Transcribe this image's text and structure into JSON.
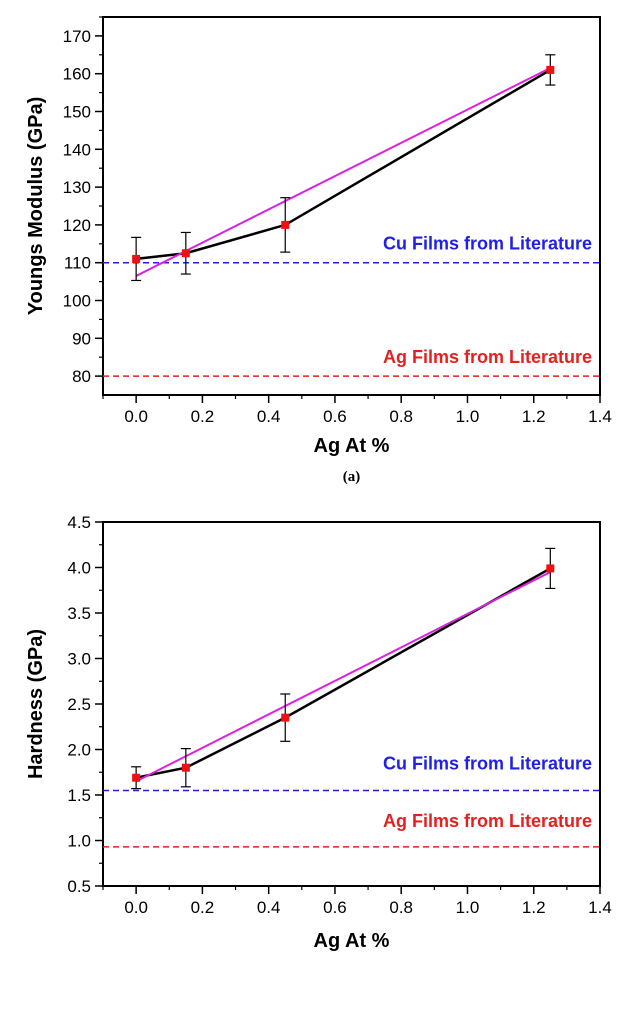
{
  "chart_data": [
    {
      "type": "line",
      "panel_label": "(a)",
      "xlabel": "Ag At %",
      "ylabel": "Youngs Modulus (GPa)",
      "xlim": [
        -0.1,
        1.4
      ],
      "ylim": [
        75,
        175
      ],
      "x_ticks": [
        0.0,
        0.2,
        0.4,
        0.6,
        0.8,
        1.0,
        1.2,
        1.4
      ],
      "x_tick_labels": [
        "0.0",
        "0.2",
        "0.4",
        "0.6",
        "0.8",
        "1.0",
        "1.2",
        "1.4"
      ],
      "y_ticks": [
        80,
        90,
        100,
        110,
        120,
        130,
        140,
        150,
        160,
        170
      ],
      "y_tick_labels": [
        "80",
        "90",
        "100",
        "110",
        "120",
        "130",
        "140",
        "150",
        "160",
        "170"
      ],
      "series": [
        {
          "kind": "data_with_error_bars",
          "color": "#000000",
          "marker_color": "#ee1111",
          "points": [
            {
              "x": 0.0,
              "y": 111.0,
              "err": 5.7
            },
            {
              "x": 0.15,
              "y": 112.5,
              "err": 5.5
            },
            {
              "x": 0.45,
              "y": 120.0,
              "err": 7.2
            },
            {
              "x": 1.25,
              "y": 161.0,
              "err": 4.0
            }
          ]
        },
        {
          "kind": "linear_fit",
          "color": "#dd22dd",
          "points": [
            {
              "x": 0.0,
              "y": 106.5
            },
            {
              "x": 1.25,
              "y": 161.5
            }
          ]
        }
      ],
      "reference_lines": [
        {
          "label": "Cu Films from Literature",
          "y": 110,
          "color": "#1f1fe6",
          "label_y": 113.5
        },
        {
          "label": "Ag Films from Literature",
          "y": 80,
          "color": "#e61f1f",
          "label_y": 83.5
        }
      ]
    },
    {
      "type": "line",
      "panel_label": "",
      "xlabel": "Ag At %",
      "ylabel": "Hardness (GPa)",
      "xlim": [
        -0.1,
        1.4
      ],
      "ylim": [
        0.5,
        4.5
      ],
      "x_ticks": [
        0.0,
        0.2,
        0.4,
        0.6,
        0.8,
        1.0,
        1.2,
        1.4
      ],
      "x_tick_labels": [
        "0.0",
        "0.2",
        "0.4",
        "0.6",
        "0.8",
        "1.0",
        "1.2",
        "1.4"
      ],
      "y_ticks": [
        0.5,
        1.0,
        1.5,
        2.0,
        2.5,
        3.0,
        3.5,
        4.0,
        4.5
      ],
      "y_tick_labels": [
        "0.5",
        "1.0",
        "1.5",
        "2.0",
        "2.5",
        "3.0",
        "3.5",
        "4.0",
        "4.5"
      ],
      "series": [
        {
          "kind": "data_with_error_bars",
          "color": "#000000",
          "marker_color": "#ee1111",
          "points": [
            {
              "x": 0.0,
              "y": 1.69,
              "err": 0.12
            },
            {
              "x": 0.15,
              "y": 1.8,
              "err": 0.21
            },
            {
              "x": 0.45,
              "y": 2.35,
              "err": 0.26
            },
            {
              "x": 1.25,
              "y": 3.99,
              "err": 0.22
            }
          ]
        },
        {
          "kind": "linear_fit",
          "color": "#dd22dd",
          "points": [
            {
              "x": 0.0,
              "y": 1.65
            },
            {
              "x": 1.25,
              "y": 3.95
            }
          ]
        }
      ],
      "reference_lines": [
        {
          "label": "Cu Films from Literature",
          "y": 1.55,
          "color": "#1f1fe6",
          "label_y": 1.78
        },
        {
          "label": "Ag Films from Literature",
          "y": 0.93,
          "color": "#e61f1f",
          "label_y": 1.15
        }
      ]
    }
  ]
}
